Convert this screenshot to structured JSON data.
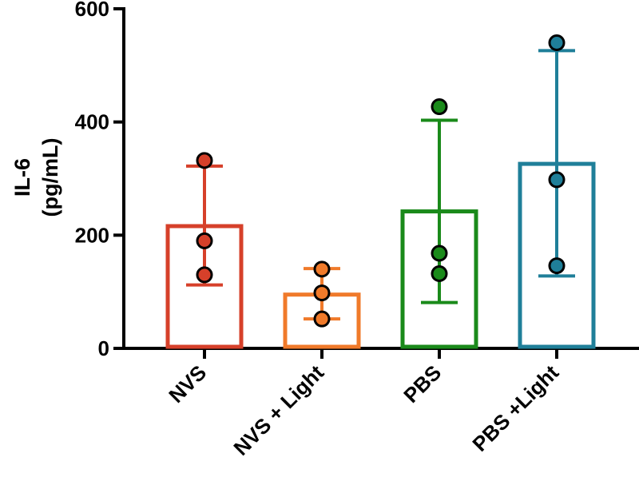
{
  "chart_data": {
    "type": "bar",
    "title": "",
    "xlabel": "",
    "ylabel": [
      "IL-6",
      "(pg/mL)"
    ],
    "ylim": [
      0,
      600
    ],
    "yticks": [
      0,
      200,
      400,
      600
    ],
    "categories": [
      "NVS",
      "NVS + Light",
      "PBS",
      "PBS +Light"
    ],
    "series": [
      {
        "name": "IL-6 mean",
        "values": [
          216,
          95,
          242,
          326
        ]
      }
    ],
    "error_bars": [
      {
        "low": 112,
        "high": 322
      },
      {
        "low": 52,
        "high": 141
      },
      {
        "low": 81,
        "high": 403
      },
      {
        "low": 128,
        "high": 526
      }
    ],
    "points": [
      [
        332,
        190,
        130
      ],
      [
        140,
        98,
        52
      ],
      [
        427,
        168,
        132
      ],
      [
        540,
        298,
        146
      ]
    ],
    "colors": [
      "#d6402a",
      "#f07a2a",
      "#1a8a1a",
      "#1f7f99"
    ],
    "grid": false,
    "legend": "none"
  }
}
